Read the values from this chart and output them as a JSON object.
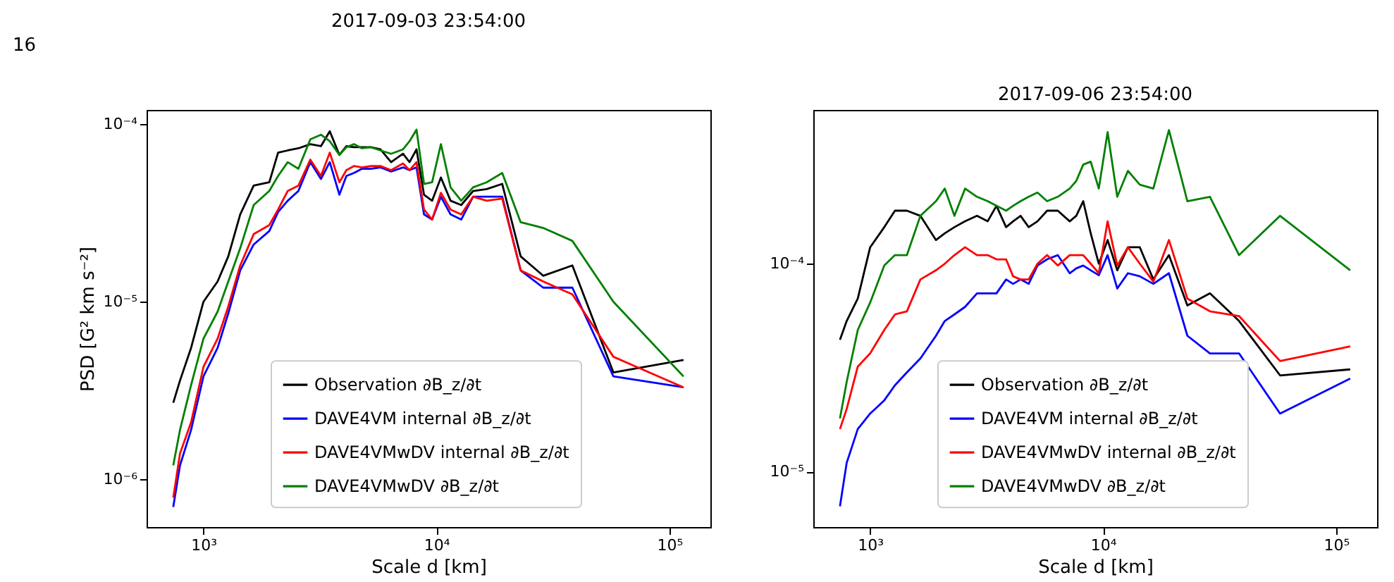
{
  "chart_data": [
    {
      "type": "line",
      "title": "2017-09-03 23:54:00",
      "xlabel": "Scale d [km]",
      "ylabel": "PSD [G² km s⁻²]",
      "annotations": [
        "16"
      ],
      "log": "xy",
      "grid": false,
      "legend": "bottom",
      "xlim": [
        570,
        150000
      ],
      "ylim": [
        5.4e-07,
        0.00012
      ],
      "xticks": [
        {
          "value": 1000,
          "label": "10³"
        },
        {
          "value": 10000,
          "label": "10⁴"
        },
        {
          "value": 100000,
          "label": "10⁵"
        }
      ],
      "yticks": [
        {
          "value": 1e-06,
          "label": "10⁻⁶"
        },
        {
          "value": 1e-05,
          "label": "10⁻⁵"
        },
        {
          "value": 0.0001,
          "label": "10⁻⁴"
        }
      ],
      "x": [
        115000,
        57500,
        38333,
        28750,
        23000,
        19167,
        16429,
        14375,
        12778,
        11500,
        10455,
        9583,
        8846,
        8214,
        7667,
        7188,
        6389,
        5750,
        5227,
        4792,
        4423,
        4107,
        3833,
        3485,
        3194,
        2875,
        2556,
        2300,
        2091,
        1917,
        1643,
        1438,
        1278,
        1150,
        1000,
        885,
        793,
        742
      ],
      "series": [
        {
          "name": "Observation ∂B_z/∂t",
          "color": "#000000",
          "values": [
            4.7e-06,
            4e-06,
            1.6e-05,
            1.4e-05,
            1.8e-05,
            4.6e-05,
            4.3e-05,
            4.2e-05,
            3.5e-05,
            3.7e-05,
            5e-05,
            3.7e-05,
            4e-05,
            7.2e-05,
            6.1e-05,
            6.8e-05,
            6.1e-05,
            7.2e-05,
            7.4e-05,
            7.4e-05,
            7.4e-05,
            7.5e-05,
            6.7e-05,
            9.1e-05,
            7.5e-05,
            7.7e-05,
            7.3e-05,
            7.1e-05,
            6.9e-05,
            4.7e-05,
            4.5e-05,
            3.1e-05,
            1.8e-05,
            1.3e-05,
            1e-05,
            5.5e-06,
            3.6e-06,
            2.7e-06
          ]
        },
        {
          "name": "DAVE4VM internal ∂B_z/∂t",
          "color": "#0000ff",
          "values": [
            3.3e-06,
            3.8e-06,
            1.2e-05,
            1.2e-05,
            1.5e-05,
            3.9e-05,
            3.9e-05,
            3.9e-05,
            2.9e-05,
            3.1e-05,
            3.9e-05,
            2.9e-05,
            3.1e-05,
            5.7e-05,
            5.5e-05,
            5.7e-05,
            5.4e-05,
            5.7e-05,
            5.6e-05,
            5.6e-05,
            5.3e-05,
            5.1e-05,
            4e-05,
            6.1e-05,
            4.9e-05,
            6.1e-05,
            4.2e-05,
            3.7e-05,
            3.2e-05,
            2.5e-05,
            2.1e-05,
            1.5e-05,
            8.6e-06,
            5.5e-06,
            3.8e-06,
            1.9e-06,
            1.2e-06,
            7e-07
          ]
        },
        {
          "name": "DAVE4VMwDV internal ∂B_z/∂t",
          "color": "#ff0000",
          "values": [
            3.3e-06,
            4.9e-06,
            1.1e-05,
            1.3e-05,
            1.5e-05,
            3.8e-05,
            3.7e-05,
            3.9e-05,
            3.1e-05,
            3.3e-05,
            4.1e-05,
            2.9e-05,
            3.3e-05,
            6.1e-05,
            5.5e-05,
            6e-05,
            5.5e-05,
            5.8e-05,
            5.8e-05,
            5.7e-05,
            5.8e-05,
            5.5e-05,
            4.7e-05,
            6.9e-05,
            5.1e-05,
            6.3e-05,
            4.5e-05,
            4.2e-05,
            3.3e-05,
            2.7e-05,
            2.4e-05,
            1.6e-05,
            9.4e-06,
            6.2e-06,
            4.3e-06,
            2.1e-06,
            1.4e-06,
            7.9e-07
          ]
        },
        {
          "name": "DAVE4VMwDV ∂B_z/∂t",
          "color": "#008000",
          "values": [
            3.8e-06,
            1e-05,
            2.2e-05,
            2.6e-05,
            2.8e-05,
            5.3e-05,
            4.7e-05,
            4.4e-05,
            3.7e-05,
            4.4e-05,
            7.7e-05,
            4.7e-05,
            4.6e-05,
            9.3e-05,
            8e-05,
            7.2e-05,
            6.8e-05,
            7.1e-05,
            7.4e-05,
            7.3e-05,
            7.7e-05,
            7.4e-05,
            6.7e-05,
            8e-05,
            8.7e-05,
            8.2e-05,
            5.6e-05,
            6.1e-05,
            5.1e-05,
            4.2e-05,
            3.5e-05,
            2e-05,
            1.3e-05,
            8.8e-06,
            6.2e-06,
            3.4e-06,
            1.9e-06,
            1.2e-06
          ]
        }
      ]
    },
    {
      "type": "line",
      "title": "2017-09-06 23:54:00",
      "xlabel": "Scale d [km]",
      "log": "xy",
      "grid": false,
      "legend": "bottom",
      "xlim": [
        570,
        150000
      ],
      "ylim": [
        5.4e-06,
        0.00055
      ],
      "xticks": [
        {
          "value": 1000,
          "label": "10³"
        },
        {
          "value": 10000,
          "label": "10⁴"
        },
        {
          "value": 100000,
          "label": "10⁵"
        }
      ],
      "yticks": [
        {
          "value": 1e-05,
          "label": "10⁻⁵"
        },
        {
          "value": 0.0001,
          "label": "10⁻⁴"
        }
      ],
      "x": [
        115000,
        57500,
        38333,
        28750,
        23000,
        19167,
        16429,
        14375,
        12778,
        11500,
        10455,
        9583,
        8846,
        8214,
        7667,
        7188,
        6389,
        5750,
        5227,
        4792,
        4423,
        4107,
        3833,
        3485,
        3194,
        2875,
        2556,
        2300,
        2091,
        1917,
        1643,
        1438,
        1278,
        1150,
        1000,
        885,
        793,
        742
      ],
      "series": [
        {
          "name": "Observation ∂B_z/∂t",
          "color": "#000000",
          "values": [
            3.1e-05,
            2.9e-05,
            5.3e-05,
            7.2e-05,
            6.3e-05,
            0.00011,
            8.4e-05,
            0.00012,
            0.00012,
            9.3e-05,
            0.00013,
            0.0001,
            0.00014,
            0.0002,
            0.00017,
            0.00016,
            0.00018,
            0.00018,
            0.00016,
            0.00015,
            0.00017,
            0.00016,
            0.00015,
            0.00019,
            0.00016,
            0.00017,
            0.00016,
            0.00015,
            0.00014,
            0.00013,
            0.00017,
            0.00018,
            0.00018,
            0.00015,
            0.00012,
            6.8e-05,
            5.3e-05,
            4.3e-05
          ]
        },
        {
          "name": "DAVE4VM internal ∂B_z/∂t",
          "color": "#0000ff",
          "values": [
            2.8e-05,
            1.9e-05,
            3.7e-05,
            3.7e-05,
            4.5e-05,
            9e-05,
            8e-05,
            8.7e-05,
            9e-05,
            7.6e-05,
            0.00011,
            8.8e-05,
            9.3e-05,
            9.8e-05,
            9.5e-05,
            9e-05,
            0.00011,
            0.000105,
            9.8e-05,
            8e-05,
            8.4e-05,
            8e-05,
            8.4e-05,
            7.2e-05,
            7.2e-05,
            7.2e-05,
            6.2e-05,
            5.7e-05,
            5.3e-05,
            4.5e-05,
            3.5e-05,
            3e-05,
            2.6e-05,
            2.2e-05,
            1.9e-05,
            1.6e-05,
            1.1e-05,
            6.8e-06
          ]
        },
        {
          "name": "DAVE4VMwDV internal ∂B_z/∂t",
          "color": "#ff0000",
          "values": [
            4e-05,
            3.4e-05,
            5.6e-05,
            5.9e-05,
            6.8e-05,
            0.00013,
            8.2e-05,
            0.0001,
            0.00012,
            9.8e-05,
            0.00016,
            9e-05,
            0.0001,
            0.00011,
            0.00011,
            0.00011,
            9.8e-05,
            0.00011,
            0.0001,
            8.4e-05,
            8.4e-05,
            8.7e-05,
            0.000105,
            0.000105,
            0.00011,
            0.00011,
            0.00012,
            0.00011,
            0.0001,
            9.3e-05,
            8.4e-05,
            5.9e-05,
            5.7e-05,
            4.8e-05,
            3.7e-05,
            3.2e-05,
            2e-05,
            1.6e-05
          ]
        },
        {
          "name": "DAVE4VMwDV ∂B_z/∂t",
          "color": "#008000",
          "values": [
            9.3e-05,
            0.00017,
            0.00011,
            0.00021,
            0.0002,
            0.00044,
            0.00023,
            0.00024,
            0.00028,
            0.00021,
            0.00043,
            0.00023,
            0.00031,
            0.0003,
            0.00025,
            0.00023,
            0.00021,
            0.0002,
            0.00022,
            0.00021,
            0.0002,
            0.00019,
            0.00018,
            0.00019,
            0.0002,
            0.00021,
            0.00023,
            0.00017,
            0.00023,
            0.0002,
            0.00017,
            0.00011,
            0.00011,
            9.8e-05,
            6.5e-05,
            4.8e-05,
            2.7e-05,
            1.8e-05
          ]
        }
      ]
    }
  ]
}
